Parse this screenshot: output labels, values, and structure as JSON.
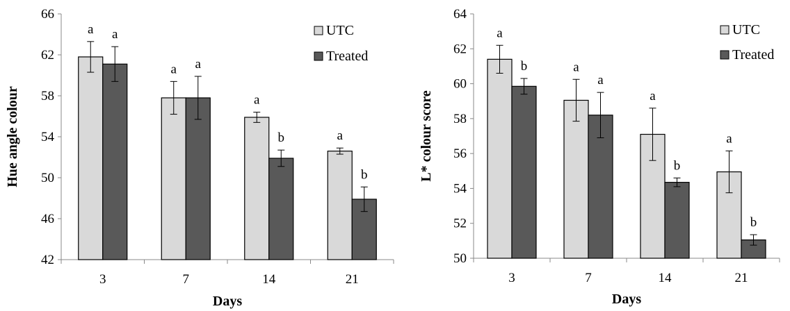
{
  "chart_data": [
    {
      "type": "bar",
      "xlabel": "Days",
      "ylabel": "Hue angle colour",
      "categories": [
        "3",
        "7",
        "14",
        "21"
      ],
      "ylim": [
        42,
        66
      ],
      "yticks": [
        "42",
        "46",
        "50",
        "54",
        "58",
        "62",
        "66"
      ],
      "series": [
        {
          "name": "UTC",
          "color": "#d9d9d9",
          "values": [
            61.8,
            57.8,
            55.9,
            52.6
          ],
          "errors": [
            1.5,
            1.6,
            0.5,
            0.3
          ],
          "letters": [
            "a",
            "a",
            "a",
            "a"
          ]
        },
        {
          "name": "Treated",
          "color": "#595959",
          "values": [
            61.1,
            57.8,
            51.9,
            47.9
          ],
          "errors": [
            1.7,
            2.1,
            0.8,
            1.2
          ],
          "letters": [
            "a",
            "a",
            "b",
            "b"
          ]
        }
      ],
      "legend": "top-right",
      "grid": false
    },
    {
      "type": "bar",
      "xlabel": "Days",
      "ylabel": "L* colour score",
      "categories": [
        "3",
        "7",
        "14",
        "21"
      ],
      "ylim": [
        50,
        64
      ],
      "yticks": [
        "50",
        "52",
        "54",
        "56",
        "58",
        "60",
        "62",
        "64"
      ],
      "series": [
        {
          "name": "UTC",
          "color": "#d9d9d9",
          "values": [
            61.4,
            59.05,
            57.1,
            54.95
          ],
          "errors": [
            0.8,
            1.2,
            1.5,
            1.2
          ],
          "letters": [
            "a",
            "a",
            "a",
            "a"
          ]
        },
        {
          "name": "Treated",
          "color": "#595959",
          "values": [
            59.85,
            58.2,
            54.35,
            51.05
          ],
          "errors": [
            0.45,
            1.3,
            0.25,
            0.3
          ],
          "letters": [
            "b",
            "a",
            "b",
            "b"
          ]
        }
      ],
      "legend": "top-right",
      "grid": false
    }
  ]
}
